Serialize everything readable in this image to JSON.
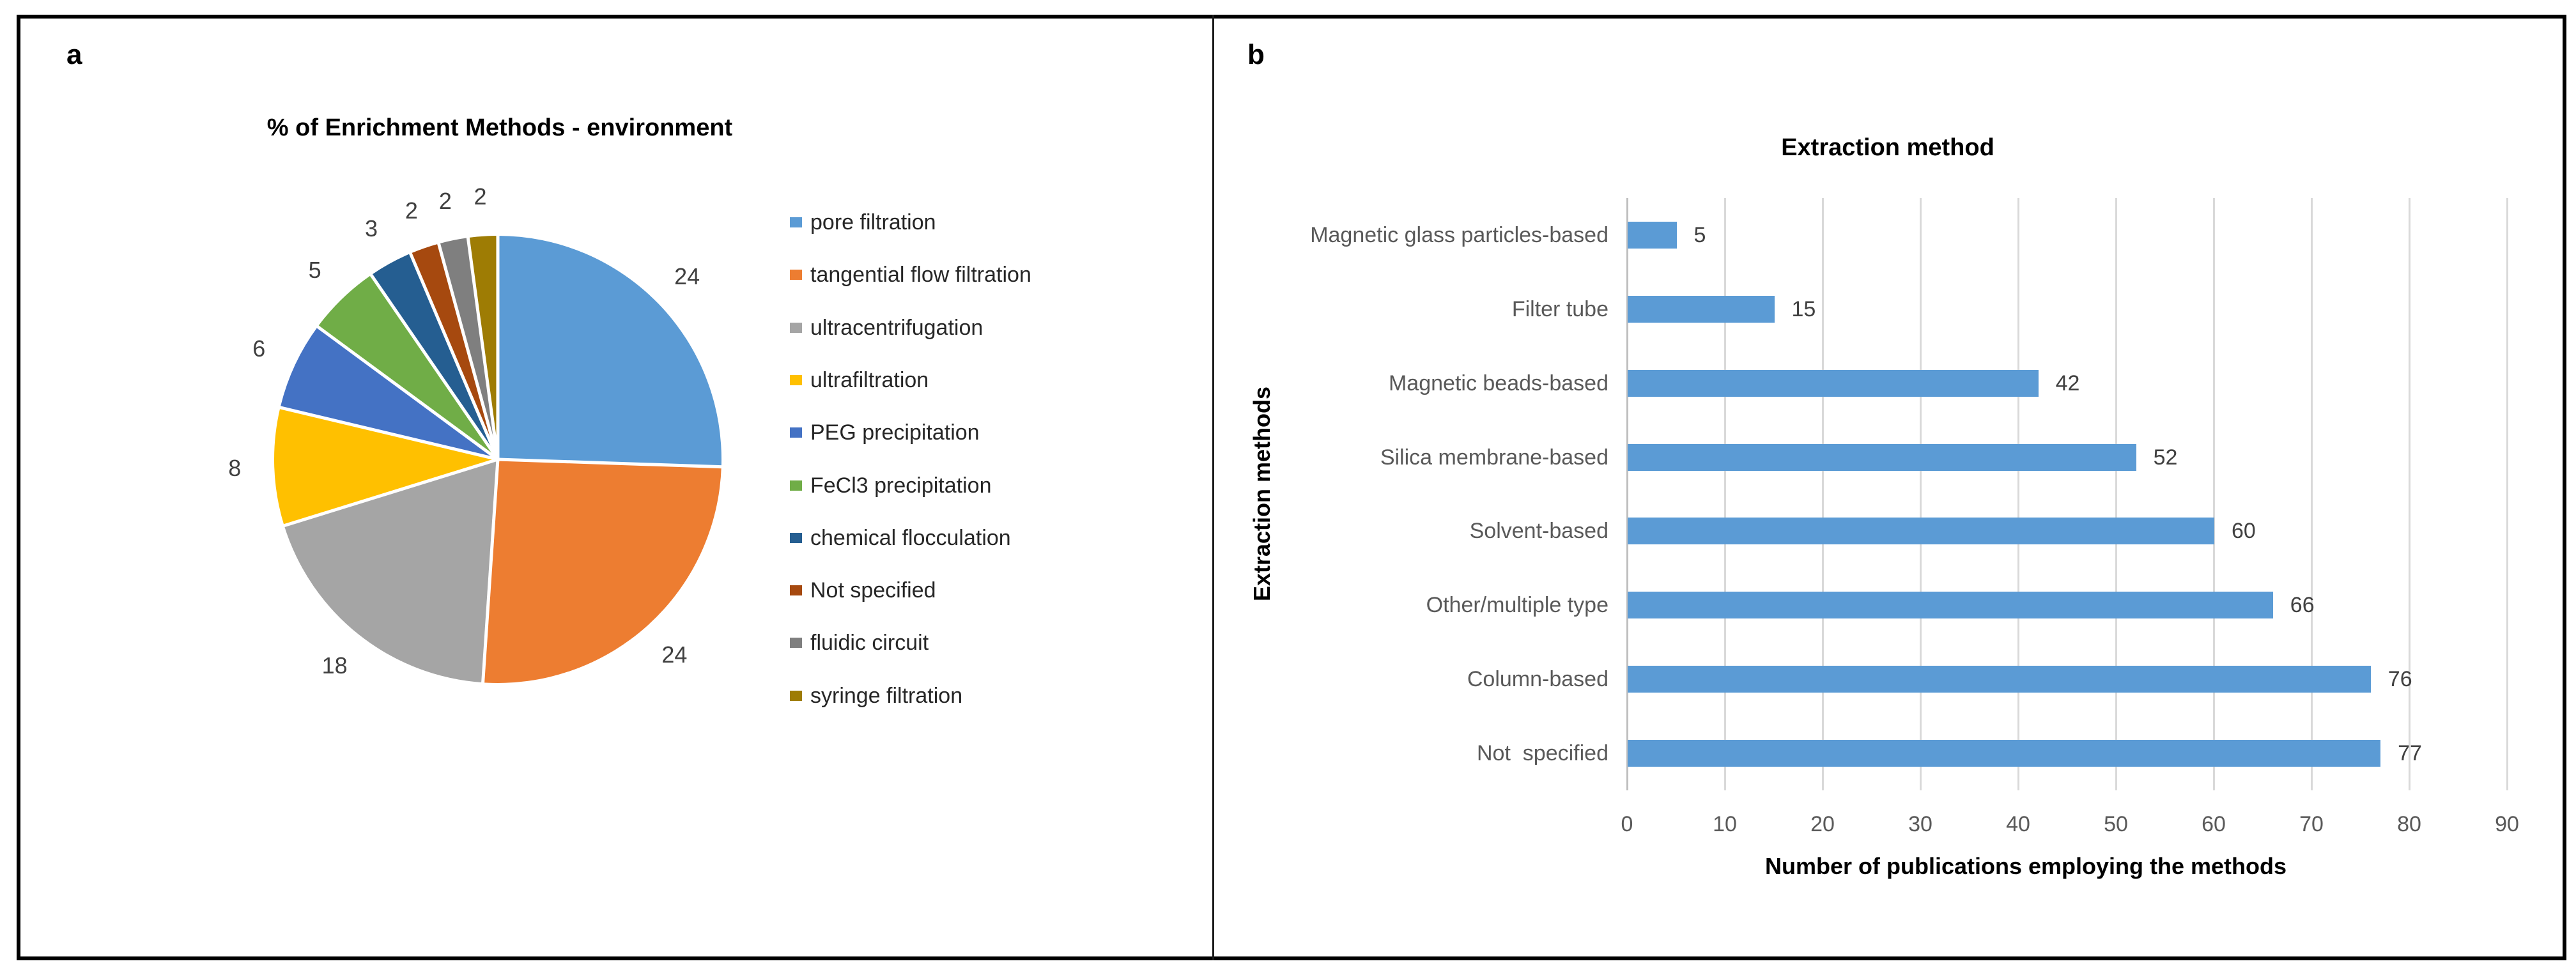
{
  "figure": {
    "panel_a_letter": "a",
    "panel_b_letter": "b"
  },
  "colors": {
    "bar": "#5B9BD5",
    "gridline": "#D9D9D9",
    "axis_line": "#BFBFBF",
    "tick_label": "#595959",
    "value_label": "#404040",
    "pie_gap": "#FFFFFF"
  },
  "chart_data": [
    {
      "type": "pie",
      "title": "% of Enrichment Methods - environment",
      "categories": [
        "pore filtration",
        "tangential flow filtration",
        "ultracentrifugation",
        "ultrafiltration",
        "PEG precipitation",
        "FeCl3 precipitation",
        "chemical flocculation",
        "Not specified",
        "fluidic circuit",
        "syringe filtration"
      ],
      "values": [
        24,
        24,
        18,
        8,
        6,
        5,
        3,
        2,
        2,
        2
      ],
      "data_labels": [
        "24",
        "24",
        "18",
        "8",
        "6",
        "5",
        "3",
        "2",
        "2",
        "2"
      ],
      "colors": [
        "#5B9BD5",
        "#ED7D31",
        "#A5A5A5",
        "#FFC000",
        "#4472C4",
        "#70AD47",
        "#255E91",
        "#A6490F",
        "#7F7F7F",
        "#9E7C04"
      ],
      "legend_position": "right",
      "start_angle_deg": 0,
      "direction": "clockwise"
    },
    {
      "type": "bar",
      "orientation": "horizontal",
      "title": "Extraction method",
      "xlabel": "Number of publications employing the methods",
      "ylabel": "Extraction methods",
      "categories": [
        "Magnetic glass particles-based",
        "Filter tube",
        "Magnetic beads-based",
        "Silica membrane-based",
        "Solvent-based",
        "Other/multiple type",
        "Column-based",
        "Not  specified"
      ],
      "values": [
        5,
        15,
        42,
        52,
        60,
        66,
        76,
        77
      ],
      "data_labels": [
        "5",
        "15",
        "42",
        "52",
        "60",
        "66",
        "76",
        "77"
      ],
      "xlim": [
        0,
        90
      ],
      "x_ticks": [
        0,
        10,
        20,
        30,
        40,
        50,
        60,
        70,
        80,
        90
      ],
      "bar_color": "#5B9BD5",
      "grid": true,
      "legend_position": "none"
    }
  ]
}
